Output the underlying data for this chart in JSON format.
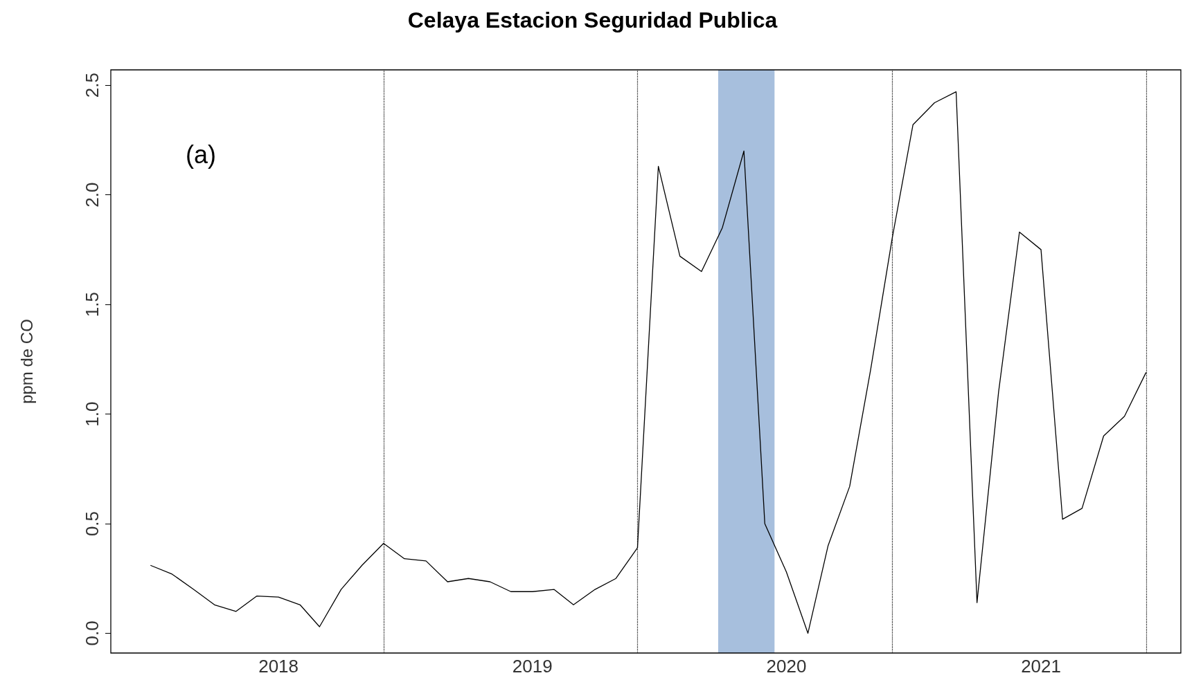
{
  "chart_data": {
    "type": "line",
    "title": "Celaya Estacion Seguridad Publica",
    "ylabel": "ppm de CO",
    "annotations": [
      "(a)"
    ],
    "x": [
      "2017-07",
      "2017-08",
      "2017-09",
      "2017-10",
      "2017-11",
      "2017-12",
      "2018-01",
      "2018-02",
      "2018-03",
      "2018-04",
      "2018-05",
      "2018-06",
      "2018-07",
      "2018-08",
      "2018-09",
      "2018-10",
      "2018-11",
      "2018-12",
      "2019-01",
      "2019-02",
      "2019-03",
      "2019-04",
      "2019-05",
      "2019-06",
      "2019-07",
      "2019-08",
      "2019-09",
      "2019-10",
      "2019-11",
      "2019-12",
      "2020-01",
      "2020-02",
      "2020-03",
      "2020-04",
      "2020-05",
      "2020-06",
      "2020-07",
      "2020-08",
      "2020-09",
      "2020-10",
      "2020-11",
      "2020-12",
      "2021-01",
      "2021-02",
      "2021-03",
      "2021-04",
      "2021-05",
      "2021-06"
    ],
    "series": [
      {
        "color": "#000000",
        "values": [
          0.31,
          0.27,
          0.2,
          0.13,
          0.1,
          0.17,
          0.165,
          0.13,
          0.03,
          0.2,
          0.31,
          0.41,
          0.34,
          0.33,
          0.235,
          0.25,
          0.235,
          0.19,
          0.19,
          0.2,
          0.13,
          0.2,
          0.25,
          0.39,
          2.13,
          1.72,
          1.65,
          1.85,
          2.2,
          0.5,
          0.28,
          0.0,
          0.4,
          0.67,
          1.2,
          1.8,
          2.32,
          2.42,
          2.47,
          0.14,
          1.1,
          1.83,
          1.75,
          0.52,
          0.57,
          0.9,
          0.99,
          1.19
        ]
      }
    ],
    "xlim": [
      "2017-05-05",
      "2021-07-21"
    ],
    "xticks": [
      {
        "value": "2018-01-01",
        "label": "2018"
      },
      {
        "value": "2019-01-01",
        "label": "2019"
      },
      {
        "value": "2020-01-01",
        "label": "2020"
      },
      {
        "value": "2021-01-01",
        "label": "2021"
      }
    ],
    "ylim": [
      -0.09,
      2.57
    ],
    "yticks": [
      {
        "value": 0,
        "label": "0.0"
      },
      {
        "value": 0.5,
        "label": "0.5"
      },
      {
        "value": 1,
        "label": "1.0"
      },
      {
        "value": 1.5,
        "label": "1.5"
      },
      {
        "value": 2,
        "label": "2.0"
      },
      {
        "value": 2.5,
        "label": "2.5"
      }
    ],
    "grid": false,
    "marker": "none",
    "line_style": "solid",
    "ref_lines": [
      {
        "axis": "x",
        "value": "2018-06",
        "color": "#000000",
        "line_style": "dotted"
      },
      {
        "axis": "x",
        "value": "2019-06",
        "color": "#000000",
        "line_style": "dotted"
      },
      {
        "axis": "x",
        "value": "2020-06",
        "color": "#000000",
        "line_style": "dotted"
      },
      {
        "axis": "x",
        "value": "2021-06",
        "color": "#000000",
        "line_style": "dotted"
      }
    ],
    "bands": [
      {
        "axis": "x",
        "from": "2019-09-25",
        "to": "2019-12-15",
        "color": "#a7bfdd"
      }
    ]
  }
}
